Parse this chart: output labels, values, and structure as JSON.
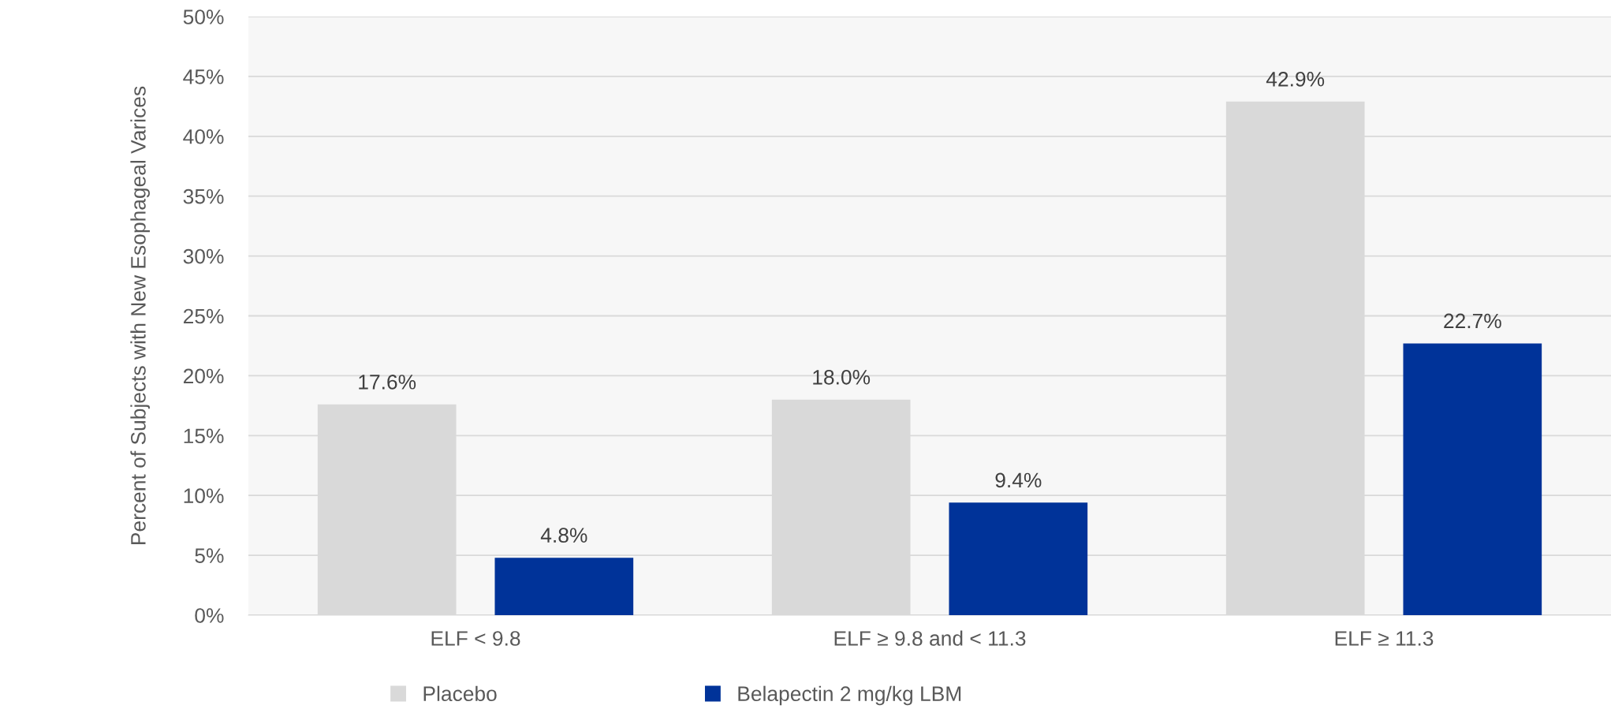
{
  "chart_data": {
    "type": "bar",
    "ylabel": "Percent of Subjects with New Esophageal Varices",
    "categories": [
      "ELF < 9.8",
      "ELF ≥ 9.8 and < 11.3",
      "ELF ≥ 11.3"
    ],
    "series": [
      {
        "name": "Placebo",
        "color": "#d9d9d9",
        "values": [
          17.6,
          18.0,
          42.9
        ],
        "value_labels": [
          "17.6%",
          "18.0%",
          "42.9%"
        ]
      },
      {
        "name": "Belapectin 2 mg/kg LBM",
        "color": "#003399",
        "values": [
          4.8,
          9.4,
          22.7
        ],
        "value_labels": [
          "4.8%",
          "9.4%",
          "22.7%"
        ]
      }
    ],
    "ylim": [
      0,
      50
    ],
    "yticks": [
      {
        "value": 0,
        "label": "0%"
      },
      {
        "value": 5,
        "label": "5%"
      },
      {
        "value": 10,
        "label": "10%"
      },
      {
        "value": 15,
        "label": "15%"
      },
      {
        "value": 20,
        "label": "20%"
      },
      {
        "value": 25,
        "label": "25%"
      },
      {
        "value": 30,
        "label": "30%"
      },
      {
        "value": 35,
        "label": "35%"
      },
      {
        "value": 40,
        "label": "40%"
      },
      {
        "value": 45,
        "label": "45%"
      },
      {
        "value": 50,
        "label": "50%"
      }
    ],
    "grid": "y",
    "legend": "bottom"
  }
}
